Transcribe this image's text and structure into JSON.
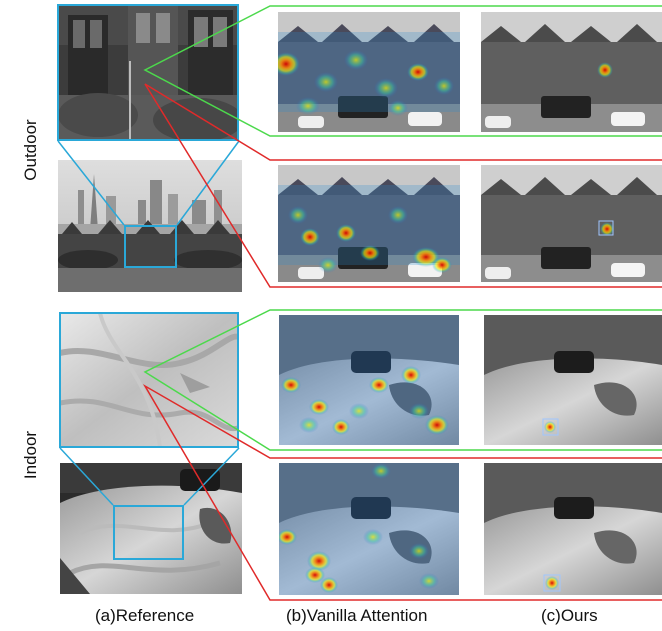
{
  "row_labels": {
    "outdoor": "Outdoor",
    "indoor": "Indoor"
  },
  "column_labels": {
    "reference": "(a)Reference",
    "vanilla": "(b)Vanilla Attention",
    "ours": "(c)Ours"
  },
  "colors": {
    "cyan_box": "#2aa8d8",
    "green_line": "#4cd94c",
    "red_line": "#e02a2a"
  }
}
